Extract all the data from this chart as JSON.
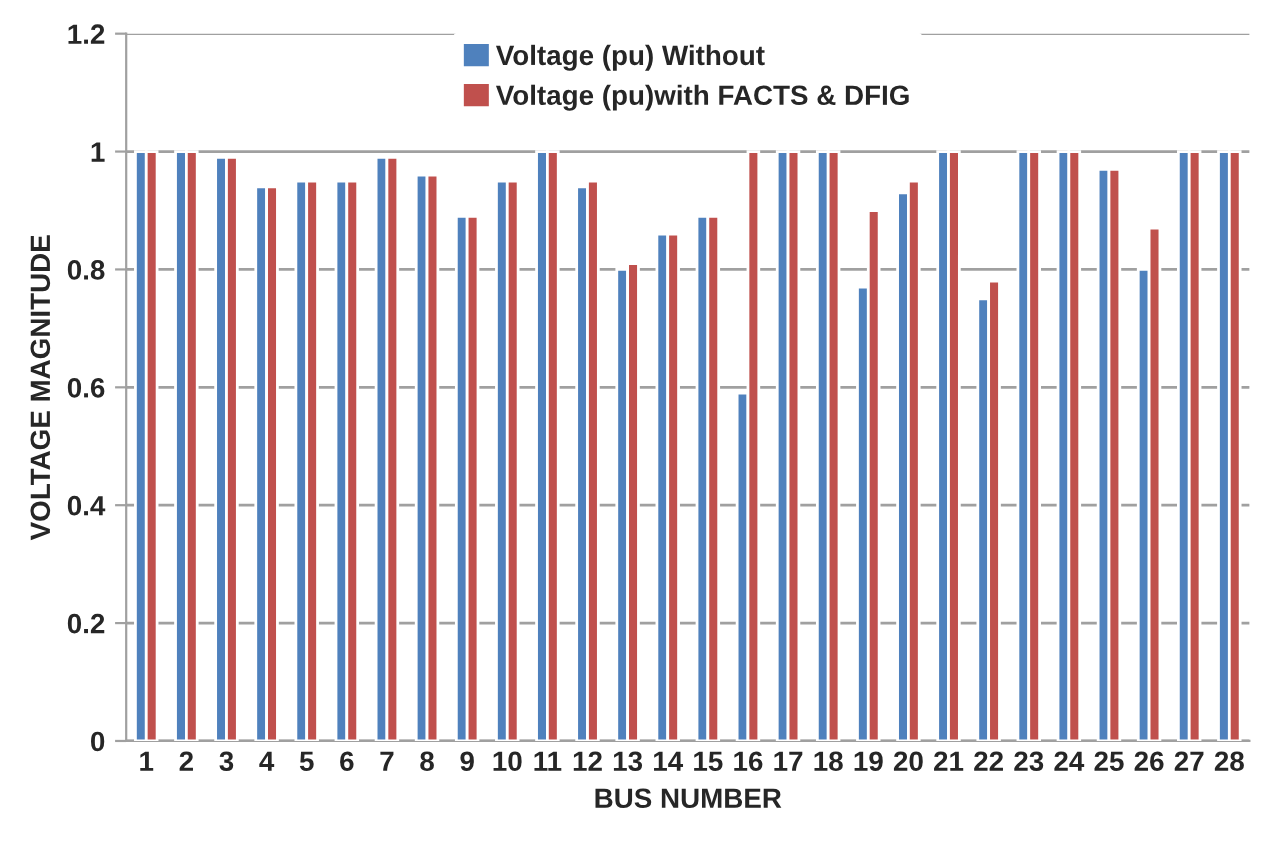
{
  "chart_data": {
    "type": "bar",
    "xlabel": "BUS NUMBER",
    "ylabel": "VOLTAGE MAGNITUDE",
    "categories": [
      "1",
      "2",
      "3",
      "4",
      "5",
      "6",
      "7",
      "8",
      "9",
      "10",
      "11",
      "12",
      "13",
      "14",
      "15",
      "16",
      "17",
      "18",
      "19",
      "20",
      "21",
      "22",
      "23",
      "24",
      "25",
      "26",
      "27",
      "28"
    ],
    "series": [
      {
        "name": "Voltage (pu) Without",
        "color": "#4f81bd",
        "values": [
          1.0,
          1.0,
          0.99,
          0.94,
          0.95,
          0.95,
          0.99,
          0.96,
          0.89,
          0.95,
          1.0,
          0.94,
          0.8,
          0.86,
          0.89,
          0.59,
          1.0,
          1.0,
          0.77,
          0.93,
          1.0,
          0.75,
          1.0,
          1.0,
          0.97,
          0.8,
          1.0,
          1.0
        ]
      },
      {
        "name": "Voltage (pu)with FACTS & DFIG",
        "color": "#c0504d",
        "values": [
          1.0,
          1.0,
          0.99,
          0.94,
          0.95,
          0.95,
          0.99,
          0.96,
          0.89,
          0.95,
          1.0,
          0.95,
          0.81,
          0.86,
          0.89,
          1.0,
          1.0,
          1.0,
          0.9,
          0.95,
          1.0,
          0.78,
          1.0,
          1.0,
          0.97,
          0.87,
          1.0,
          1.0
        ]
      }
    ],
    "ylim": [
      0,
      1.2
    ],
    "yticks": [
      {
        "value": 0,
        "label": "0"
      },
      0.2,
      0.4,
      0.6,
      0.8,
      {
        "value": 1,
        "label": "1"
      },
      1.2
    ],
    "grid": "y",
    "legend": "top"
  }
}
